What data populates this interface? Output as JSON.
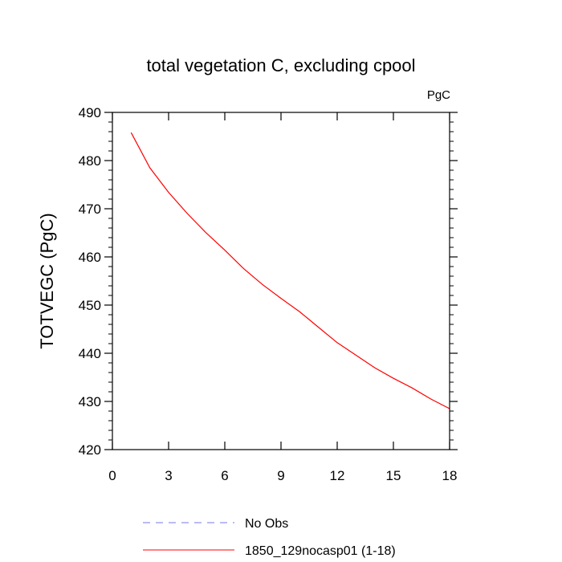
{
  "chart_data": {
    "type": "line",
    "title": "total vegetation C, excluding cpool",
    "units_label": "PgC",
    "ylabel": "TOTVEGC  (PgC)",
    "xlabel": "",
    "xlim": [
      0,
      18
    ],
    "ylim": [
      420,
      490
    ],
    "x_ticks": [
      0,
      3,
      6,
      9,
      12,
      15,
      18
    ],
    "y_ticks": [
      420,
      430,
      440,
      450,
      460,
      470,
      480,
      490
    ],
    "legend_position": "bottom",
    "series": [
      {
        "name": "1850_129nocasp01 (1-18)",
        "color": "#ff0000",
        "style": "solid",
        "x": [
          1,
          2,
          3,
          4,
          5,
          6,
          7,
          8,
          9,
          10,
          11,
          12,
          13,
          14,
          15,
          16,
          17,
          18
        ],
        "values": [
          485.8,
          478.5,
          473.4,
          469.0,
          465.0,
          461.4,
          457.6,
          454.3,
          451.4,
          448.6,
          445.4,
          442.2,
          439.6,
          437.0,
          434.8,
          432.8,
          430.5,
          428.5
        ]
      }
    ],
    "legend": [
      {
        "name": "No Obs",
        "color": "#7777ee",
        "style": "dashed"
      },
      {
        "name": "1850_129nocasp01 (1-18)",
        "color": "#ff0000",
        "style": "solid"
      }
    ]
  }
}
